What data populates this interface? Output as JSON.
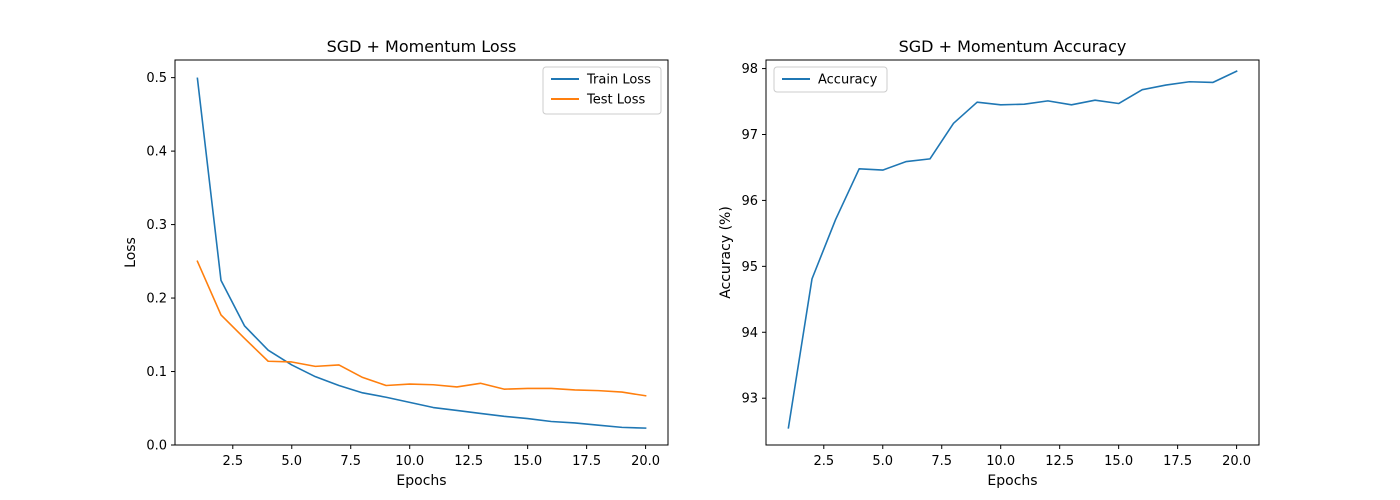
{
  "chart_data": [
    {
      "type": "line",
      "title": "SGD + Momentum Loss",
      "xlabel": "Epochs",
      "ylabel": "Loss",
      "xlim": [
        0.05,
        20.95
      ],
      "ylim": [
        0.0,
        0.524
      ],
      "xticks": [
        2.5,
        5.0,
        7.5,
        10.0,
        12.5,
        15.0,
        17.5,
        20.0
      ],
      "xtick_labels": [
        "2.5",
        "5.0",
        "7.5",
        "10.0",
        "12.5",
        "15.0",
        "17.5",
        "20.0"
      ],
      "yticks": [
        0.0,
        0.1,
        0.2,
        0.3,
        0.4,
        0.5
      ],
      "ytick_labels": [
        "0.0",
        "0.1",
        "0.2",
        "0.3",
        "0.4",
        "0.5"
      ],
      "grid": false,
      "legend": "upper right",
      "x": [
        1,
        2,
        3,
        4,
        5,
        6,
        7,
        8,
        9,
        10,
        11,
        12,
        13,
        14,
        15,
        16,
        17,
        18,
        19,
        20
      ],
      "series": [
        {
          "name": "Train Loss",
          "color": "#1f77b4",
          "values": [
            0.499,
            0.224,
            0.162,
            0.129,
            0.109,
            0.093,
            0.081,
            0.071,
            0.065,
            0.058,
            0.051,
            0.047,
            0.043,
            0.039,
            0.036,
            0.032,
            0.03,
            0.027,
            0.024,
            0.023
          ]
        },
        {
          "name": "Test Loss",
          "color": "#ff7f0e",
          "values": [
            0.25,
            0.177,
            0.145,
            0.114,
            0.113,
            0.107,
            0.109,
            0.092,
            0.081,
            0.083,
            0.082,
            0.079,
            0.084,
            0.076,
            0.077,
            0.077,
            0.075,
            0.074,
            0.072,
            0.067
          ]
        }
      ]
    },
    {
      "type": "line",
      "title": "SGD + Momentum Accuracy",
      "xlabel": "Epochs",
      "ylabel": "Accuracy (%)",
      "xlim": [
        0.05,
        20.95
      ],
      "ylim": [
        92.29,
        98.13
      ],
      "xticks": [
        2.5,
        5.0,
        7.5,
        10.0,
        12.5,
        15.0,
        17.5,
        20.0
      ],
      "xtick_labels": [
        "2.5",
        "5.0",
        "7.5",
        "10.0",
        "12.5",
        "15.0",
        "17.5",
        "20.0"
      ],
      "yticks": [
        93,
        94,
        95,
        96,
        97,
        98
      ],
      "ytick_labels": [
        "93",
        "94",
        "95",
        "96",
        "97",
        "98"
      ],
      "grid": false,
      "legend": "upper left",
      "x": [
        1,
        2,
        3,
        4,
        5,
        6,
        7,
        8,
        9,
        10,
        11,
        12,
        13,
        14,
        15,
        16,
        17,
        18,
        19,
        20
      ],
      "series": [
        {
          "name": "Accuracy",
          "color": "#1f77b4",
          "values": [
            92.55,
            94.81,
            95.71,
            96.48,
            96.46,
            96.59,
            96.63,
            97.17,
            97.49,
            97.45,
            97.46,
            97.51,
            97.45,
            97.52,
            97.47,
            97.68,
            97.75,
            97.8,
            97.79,
            97.96
          ]
        }
      ]
    }
  ]
}
